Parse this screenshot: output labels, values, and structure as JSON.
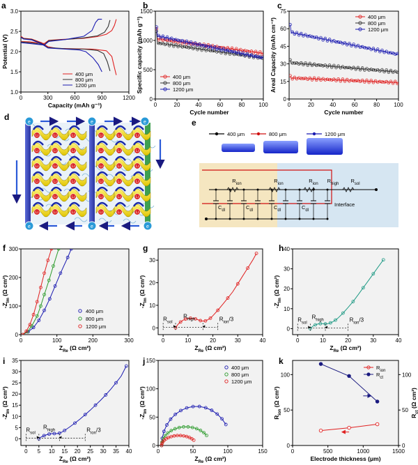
{
  "chart_data": [
    {
      "id": "a",
      "panel_label": "a",
      "type": "line",
      "xlabel": "Capacity (mAh g⁻¹)",
      "ylabel": "Potential (V)",
      "xlim": [
        0,
        1200
      ],
      "ylim": [
        1.0,
        3.0
      ],
      "xticks": [
        0,
        300,
        600,
        900,
        1200
      ],
      "yticks": [
        1.0,
        1.5,
        2.0,
        2.5,
        3.0
      ],
      "legend": "bottom-right",
      "series": [
        {
          "name": "400 μm",
          "color": "#e02020",
          "discharge": [
            [
              0,
              2.38
            ],
            [
              30,
              2.33
            ],
            [
              120,
              2.31
            ],
            [
              230,
              2.22
            ],
            [
              300,
              2.12
            ],
            [
              400,
              2.08
            ],
            [
              600,
              2.07
            ],
            [
              800,
              2.06
            ],
            [
              950,
              2.02
            ],
            [
              1010,
              1.88
            ],
            [
              1040,
              1.6
            ],
            [
              1060,
              1.42
            ]
          ],
          "charge": [
            [
              0,
              2.25
            ],
            [
              100,
              2.24
            ],
            [
              260,
              2.2
            ],
            [
              310,
              2.28
            ],
            [
              450,
              2.3
            ],
            [
              700,
              2.33
            ],
            [
              850,
              2.37
            ],
            [
              950,
              2.43
            ],
            [
              1010,
              2.52
            ],
            [
              1040,
              2.65
            ],
            [
              1060,
              2.8
            ]
          ]
        },
        {
          "name": "800 μm",
          "color": "#333333",
          "discharge": [
            [
              0,
              2.36
            ],
            [
              30,
              2.32
            ],
            [
              120,
              2.3
            ],
            [
              230,
              2.2
            ],
            [
              300,
              2.1
            ],
            [
              500,
              2.07
            ],
            [
              700,
              2.06
            ],
            [
              850,
              2.03
            ],
            [
              920,
              1.95
            ],
            [
              960,
              1.75
            ],
            [
              990,
              1.52
            ]
          ],
          "charge": [
            [
              0,
              2.24
            ],
            [
              100,
              2.22
            ],
            [
              260,
              2.17
            ],
            [
              310,
              2.27
            ],
            [
              500,
              2.3
            ],
            [
              700,
              2.34
            ],
            [
              850,
              2.39
            ],
            [
              930,
              2.48
            ],
            [
              970,
              2.62
            ],
            [
              990,
              2.78
            ]
          ]
        },
        {
          "name": "1200 μm",
          "color": "#1a1ab0",
          "discharge": [
            [
              0,
              2.35
            ],
            [
              30,
              2.31
            ],
            [
              120,
              2.29
            ],
            [
              230,
              2.19
            ],
            [
              300,
              2.09
            ],
            [
              500,
              2.06
            ],
            [
              650,
              2.04
            ],
            [
              720,
              2.0
            ],
            [
              800,
              1.85
            ],
            [
              860,
              1.68
            ],
            [
              900,
              1.5
            ]
          ],
          "charge": [
            [
              0,
              2.22
            ],
            [
              100,
              2.2
            ],
            [
              260,
              2.16
            ],
            [
              310,
              2.25
            ],
            [
              500,
              2.3
            ],
            [
              700,
              2.38
            ],
            [
              790,
              2.52
            ],
            [
              830,
              2.72
            ],
            [
              860,
              2.8
            ],
            [
              900,
              2.8
            ]
          ]
        }
      ]
    },
    {
      "id": "b",
      "panel_label": "b",
      "type": "scatter",
      "xlabel": "Cycle number",
      "ylabel": "Specific capacity (mAh g⁻¹)",
      "xlim": [
        0,
        100
      ],
      "ylim": [
        0,
        1500
      ],
      "xticks": [
        0,
        20,
        40,
        60,
        80,
        100
      ],
      "yticks": [
        0,
        500,
        1000,
        1500
      ],
      "legend": "bottom-left",
      "series": [
        {
          "name": "400 μm",
          "color": "#e02020",
          "start": 1030,
          "end": 780,
          "first": 1180
        },
        {
          "name": "800 μm",
          "color": "#333333",
          "start": 960,
          "end": 700,
          "first": 1150
        },
        {
          "name": "1200 μm",
          "color": "#1a1ab0",
          "start": 1080,
          "end": 700,
          "first": 1240
        }
      ]
    },
    {
      "id": "c",
      "panel_label": "c",
      "type": "scatter",
      "xlabel": "Cycle number",
      "ylabel": "Areal Capacity (mAh cm⁻²)",
      "xlim": [
        0,
        100
      ],
      "ylim": [
        0,
        75
      ],
      "xticks": [
        0,
        20,
        40,
        60,
        80,
        100
      ],
      "yticks": [
        0,
        15,
        30,
        45,
        60,
        75
      ],
      "legend": "top-right",
      "series": [
        {
          "name": "400 μm",
          "color": "#e02020",
          "start": 18,
          "end": 14,
          "first": 19
        },
        {
          "name": "800 μm",
          "color": "#333333",
          "start": 31,
          "end": 23,
          "first": 33
        },
        {
          "name": "1200 μm",
          "color": "#1a1ab0",
          "start": 57,
          "end": 38,
          "first": 64
        }
      ]
    },
    {
      "id": "f",
      "panel_label": "f",
      "type": "line",
      "xlabel": "Z",
      "xlabel_sub": "Re",
      "xlabel_unit": "(Ω cm²)",
      "ylabel": "-Z",
      "ylabel_sub": "Im",
      "ylabel_unit": "(Ω cm²)",
      "xlim": [
        0,
        300
      ],
      "ylim": [
        0,
        300
      ],
      "xticks": [
        0,
        100,
        200,
        300
      ],
      "yticks": [
        0,
        100,
        200,
        300
      ],
      "legend": "bottom-right",
      "series": [
        {
          "name": "400 μm",
          "color": "#1a1ab0",
          "points": [
            [
              5,
              0
            ],
            [
              20,
              10
            ],
            [
              35,
              25
            ],
            [
              50,
              50
            ],
            [
              65,
              85
            ],
            [
              80,
              125
            ],
            [
              95,
              170
            ],
            [
              110,
              215
            ],
            [
              130,
              270
            ],
            [
              140,
              300
            ]
          ]
        },
        {
          "name": "800 μm",
          "color": "#2a9a2a",
          "points": [
            [
              5,
              0
            ],
            [
              18,
              10
            ],
            [
              30,
              30
            ],
            [
              45,
              65
            ],
            [
              55,
              100
            ],
            [
              65,
              140
            ],
            [
              78,
              190
            ],
            [
              90,
              240
            ],
            [
              105,
              300
            ]
          ]
        },
        {
          "name": "1200 μm",
          "color": "#e02020",
          "points": [
            [
              5,
              0
            ],
            [
              15,
              12
            ],
            [
              25,
              35
            ],
            [
              35,
              70
            ],
            [
              45,
              115
            ],
            [
              55,
              165
            ],
            [
              65,
              215
            ],
            [
              75,
              260
            ],
            [
              85,
              300
            ]
          ]
        }
      ]
    },
    {
      "id": "g",
      "panel_label": "g",
      "type": "line",
      "xlabel": "Z",
      "xlabel_sub": "Re",
      "xlabel_unit": "(Ω cm²)",
      "ylabel": "-Z",
      "ylabel_sub": "Im",
      "ylabel_unit": "(Ω cm²)",
      "xlim": [
        -2,
        40
      ],
      "ylim": [
        -3,
        35
      ],
      "xticks": [
        0,
        10,
        20,
        30,
        40
      ],
      "yticks": [
        0,
        10,
        20,
        30
      ],
      "color": "#e02020",
      "points": [
        [
          5,
          0
        ],
        [
          6,
          1.6
        ],
        [
          7,
          2.6
        ],
        [
          8,
          3.4
        ],
        [
          9,
          3.9
        ],
        [
          10,
          4.2
        ],
        [
          11,
          4.3
        ],
        [
          12,
          4.2
        ],
        [
          13,
          4.0
        ],
        [
          14,
          3.6
        ],
        [
          15,
          3.2
        ],
        [
          16,
          3.0
        ],
        [
          17,
          3.1
        ],
        [
          18,
          3.6
        ],
        [
          19,
          4.3
        ],
        [
          20,
          5.4
        ],
        [
          22,
          7.8
        ],
        [
          24,
          10.5
        ],
        [
          26,
          13.2
        ],
        [
          28,
          16.0
        ],
        [
          30,
          19.5
        ],
        [
          32,
          23.0
        ],
        [
          34,
          26.5
        ],
        [
          36,
          30.0
        ],
        [
          37.5,
          33.0
        ]
      ],
      "annotations": {
        "rsol": "R",
        "rsol_sub": "sol",
        "rhigh": "R",
        "rhigh_sub": "high",
        "rion": "R",
        "rion_sub": "ion",
        "rion_suffix": "/3"
      },
      "marks": [
        0,
        5,
        16,
        22
      ]
    },
    {
      "id": "h",
      "panel_label": "h",
      "type": "line",
      "xlabel": "Z",
      "xlabel_sub": "Re",
      "xlabel_unit": "(Ω cm²)",
      "ylabel": "-Z",
      "ylabel_sub": "Im",
      "ylabel_unit": "(Ω cm²)",
      "xlim": [
        -2,
        40
      ],
      "ylim": [
        -3,
        40
      ],
      "xticks": [
        0,
        10,
        20,
        30,
        40
      ],
      "yticks": [
        0,
        10,
        20,
        30,
        40
      ],
      "color": "#1f9a85",
      "points": [
        [
          5,
          0
        ],
        [
          6,
          1.2
        ],
        [
          7,
          1.9
        ],
        [
          8,
          2.3
        ],
        [
          9,
          2.5
        ],
        [
          10,
          2.5
        ],
        [
          11,
          2.4
        ],
        [
          12,
          2.5
        ],
        [
          13,
          2.9
        ],
        [
          14,
          3.5
        ],
        [
          15,
          4.3
        ],
        [
          16,
          5.3
        ],
        [
          18,
          7.8
        ],
        [
          20,
          10.6
        ],
        [
          22,
          13.6
        ],
        [
          24,
          17.0
        ],
        [
          26,
          20.5
        ],
        [
          28,
          24.0
        ],
        [
          30,
          27.5
        ],
        [
          32,
          31.0
        ],
        [
          34,
          34.5
        ]
      ],
      "annotations": {
        "rsol": "R",
        "rsol_sub": "sol",
        "rhigh": "R",
        "rhigh_sub": "high",
        "rion": "R",
        "rion_sub": "ion",
        "rion_suffix": "/3"
      },
      "marks": [
        0,
        5,
        11,
        20
      ]
    },
    {
      "id": "i",
      "panel_label": "i",
      "type": "line",
      "xlabel": "Z",
      "xlabel_sub": "Re",
      "xlabel_unit": "(Ω cm²)",
      "ylabel": "-Z",
      "ylabel_sub": "Im",
      "ylabel_unit": "(Ω cm²)",
      "xlim": [
        -2,
        40
      ],
      "ylim": [
        -3,
        35
      ],
      "xticks": [
        0,
        5,
        10,
        15,
        20,
        25,
        30,
        35,
        40
      ],
      "yticks": [
        0,
        5,
        10,
        15,
        20,
        25,
        30,
        35
      ],
      "color": "#1a1ab0",
      "points": [
        [
          5,
          0
        ],
        [
          6,
          0.9
        ],
        [
          7,
          1.4
        ],
        [
          8,
          1.8
        ],
        [
          9,
          2.1
        ],
        [
          10,
          2.3
        ],
        [
          11,
          2.3
        ],
        [
          12,
          2.3
        ],
        [
          13,
          2.5
        ],
        [
          14,
          3.0
        ],
        [
          15,
          3.7
        ],
        [
          17,
          5.3
        ],
        [
          19,
          7.0
        ],
        [
          21,
          8.8
        ],
        [
          23,
          10.8
        ],
        [
          25,
          12.8
        ],
        [
          27,
          15.0
        ],
        [
          29,
          17.2
        ],
        [
          31,
          19.6
        ],
        [
          33,
          22.2
        ],
        [
          35,
          25.0
        ],
        [
          37,
          28.0
        ],
        [
          39,
          32.5
        ]
      ],
      "annotations": {
        "rsol": "R",
        "rsol_sub": "sol",
        "rhigh": "R",
        "rhigh_sub": "high",
        "rion": "R",
        "rion_sub": "ion",
        "rion_suffix": "/3"
      },
      "marks": [
        0,
        5,
        13,
        23
      ]
    },
    {
      "id": "j",
      "panel_label": "j",
      "type": "scatter",
      "xlabel": "Z",
      "xlabel_sub": "Re",
      "xlabel_unit": "(Ω cm²)",
      "ylabel": "-Z",
      "ylabel_sub": "Im",
      "ylabel_unit": "(Ω cm²)",
      "xlim": [
        0,
        150
      ],
      "ylim": [
        0,
        150
      ],
      "xticks": [
        0,
        50,
        100,
        150
      ],
      "yticks": [
        0,
        50,
        100,
        150
      ],
      "legend": "top-right",
      "series": [
        {
          "name": "400 μm",
          "color": "#1a1ab0",
          "rs": 5,
          "end": 105,
          "peak": 67
        },
        {
          "name": "800 μm",
          "color": "#2a9a2a",
          "rs": 5,
          "end": 75,
          "peak": 32
        },
        {
          "name": "1200 μm",
          "color": "#e02020",
          "rs": 5,
          "end": 55,
          "peak": 17
        }
      ]
    },
    {
      "id": "k",
      "panel_label": "k",
      "type": "line",
      "xlabel": "Electrode thickness (μm)",
      "ylabel": "R",
      "ylabel_sub": "ion",
      "ylabel_unit": "(Ω cm²)",
      "y2label": "R",
      "y2label_sub": "ct",
      "y2label_unit": "(Ω cm²)",
      "xlim": [
        0,
        1500
      ],
      "ylim": [
        0,
        120
      ],
      "y2lim": [
        0,
        120
      ],
      "xticks": [
        0,
        500,
        1000,
        1500
      ],
      "yticks": [
        0,
        50,
        100
      ],
      "y2ticks": [
        0,
        50,
        100
      ],
      "legend": "top-right",
      "series": [
        {
          "name": "R",
          "name_sub": "ion",
          "color": "#e02020",
          "axis": "left",
          "x": [
            400,
            800,
            1200
          ],
          "y": [
            21,
            25,
            30
          ]
        },
        {
          "name": "R",
          "name_sub": "ct",
          "color": "#1a1a80",
          "axis": "right",
          "x": [
            400,
            800,
            1200
          ],
          "y": [
            115,
            98,
            62
          ]
        }
      ]
    }
  ],
  "schematic_e": {
    "legend": [
      "400 μm",
      "800 μm",
      "1200 μm"
    ],
    "legend_colors": [
      "#000000",
      "#d01010",
      "#1a1ab0"
    ],
    "labels": {
      "rion1": "R",
      "rion1_sub": "ion",
      "rion2": "R",
      "rion2_sub": "ion",
      "rion3": "R",
      "rion3_sub": "ion",
      "rhigh": "R",
      "rhigh_sub": "high",
      "rsol": "R",
      "rsol_sub": "sol",
      "cdl": "C",
      "cdl_sub": "dl",
      "interface": "Interface"
    }
  },
  "schematic_d": {
    "panel_label": "d"
  },
  "panel_e_label": "e"
}
